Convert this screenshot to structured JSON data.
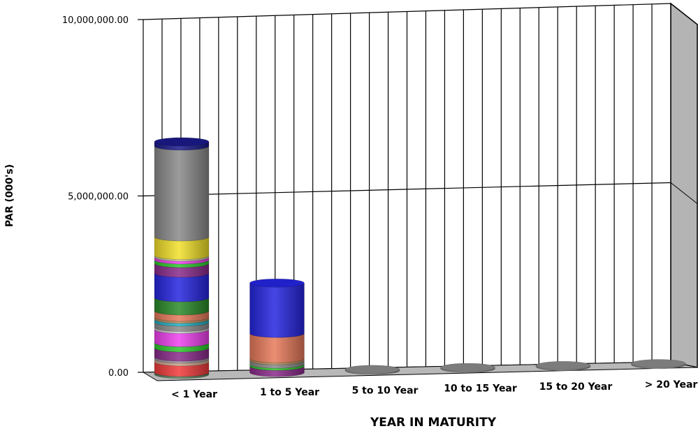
{
  "chart_data": {
    "type": "bar",
    "stacked": true,
    "title": "",
    "xlabel": "YEAR IN MATURITY",
    "ylabel": "PAR (000's)",
    "ylim": [
      0,
      10000000
    ],
    "yticks": [
      "0.00",
      "5,000,000.00",
      "10,000,000.00"
    ],
    "ytick_values": [
      0,
      5000000,
      10000000
    ],
    "categories": [
      "< 1 Year",
      "1 to 5 Year",
      "5 to 10 Year",
      "10 to 15 Year",
      "15 to 20 Year",
      "> 20 Year"
    ],
    "grid": true,
    "legend": "none",
    "series": [
      {
        "color": "#5a7d5a",
        "values": [
          60000,
          0,
          0,
          0,
          0,
          0
        ]
      },
      {
        "color": "#f23a3a",
        "values": [
          300000,
          0,
          0,
          0,
          0,
          0
        ]
      },
      {
        "color": "#c9a38b",
        "values": [
          80000,
          0,
          0,
          0,
          0,
          0
        ]
      },
      {
        "color": "#9c8fa0",
        "values": [
          60000,
          0,
          0,
          0,
          0,
          0
        ]
      },
      {
        "color": "#8a2a8a",
        "values": [
          260000,
          180000,
          0,
          0,
          0,
          0
        ]
      },
      {
        "color": "#2ec82e",
        "values": [
          150000,
          60000,
          0,
          0,
          0,
          0
        ]
      },
      {
        "color": "#f040f0",
        "values": [
          380000,
          0,
          0,
          0,
          0,
          0
        ]
      },
      {
        "color": "#c8c8c8",
        "values": [
          60000,
          0,
          0,
          0,
          0,
          0
        ]
      },
      {
        "color": "#8a8a8a",
        "values": [
          150000,
          100000,
          0,
          0,
          0,
          0
        ]
      },
      {
        "color": "#20b2c8",
        "values": [
          80000,
          0,
          0,
          0,
          0,
          0
        ]
      },
      {
        "color": "#b48a5a",
        "values": [
          60000,
          60000,
          0,
          0,
          0,
          0
        ]
      },
      {
        "color": "#e87a5a",
        "values": [
          180000,
          720000,
          0,
          0,
          0,
          0
        ]
      },
      {
        "color": "#2a8a2a",
        "values": [
          380000,
          0,
          0,
          0,
          0,
          0
        ]
      },
      {
        "color": "#2525e0",
        "values": [
          700000,
          1440000,
          0,
          0,
          0,
          0
        ]
      },
      {
        "color": "#8a2a8a",
        "values": [
          280000,
          0,
          0,
          0,
          0,
          0
        ]
      },
      {
        "color": "#2ec82e",
        "values": [
          100000,
          0,
          0,
          0,
          0,
          0
        ]
      },
      {
        "color": "#f040f0",
        "values": [
          80000,
          0,
          0,
          0,
          0,
          0
        ]
      },
      {
        "color": "#c8c8a0",
        "values": [
          50000,
          0,
          0,
          0,
          0,
          0
        ]
      },
      {
        "color": "#f2e02a",
        "values": [
          530000,
          0,
          0,
          0,
          0,
          0
        ]
      },
      {
        "color": "#8a8a8a",
        "values": [
          2600000,
          0,
          10000,
          5000,
          3000,
          2000
        ]
      },
      {
        "color": "#1a1a8a",
        "values": [
          120000,
          0,
          0,
          0,
          0,
          0
        ]
      }
    ]
  }
}
